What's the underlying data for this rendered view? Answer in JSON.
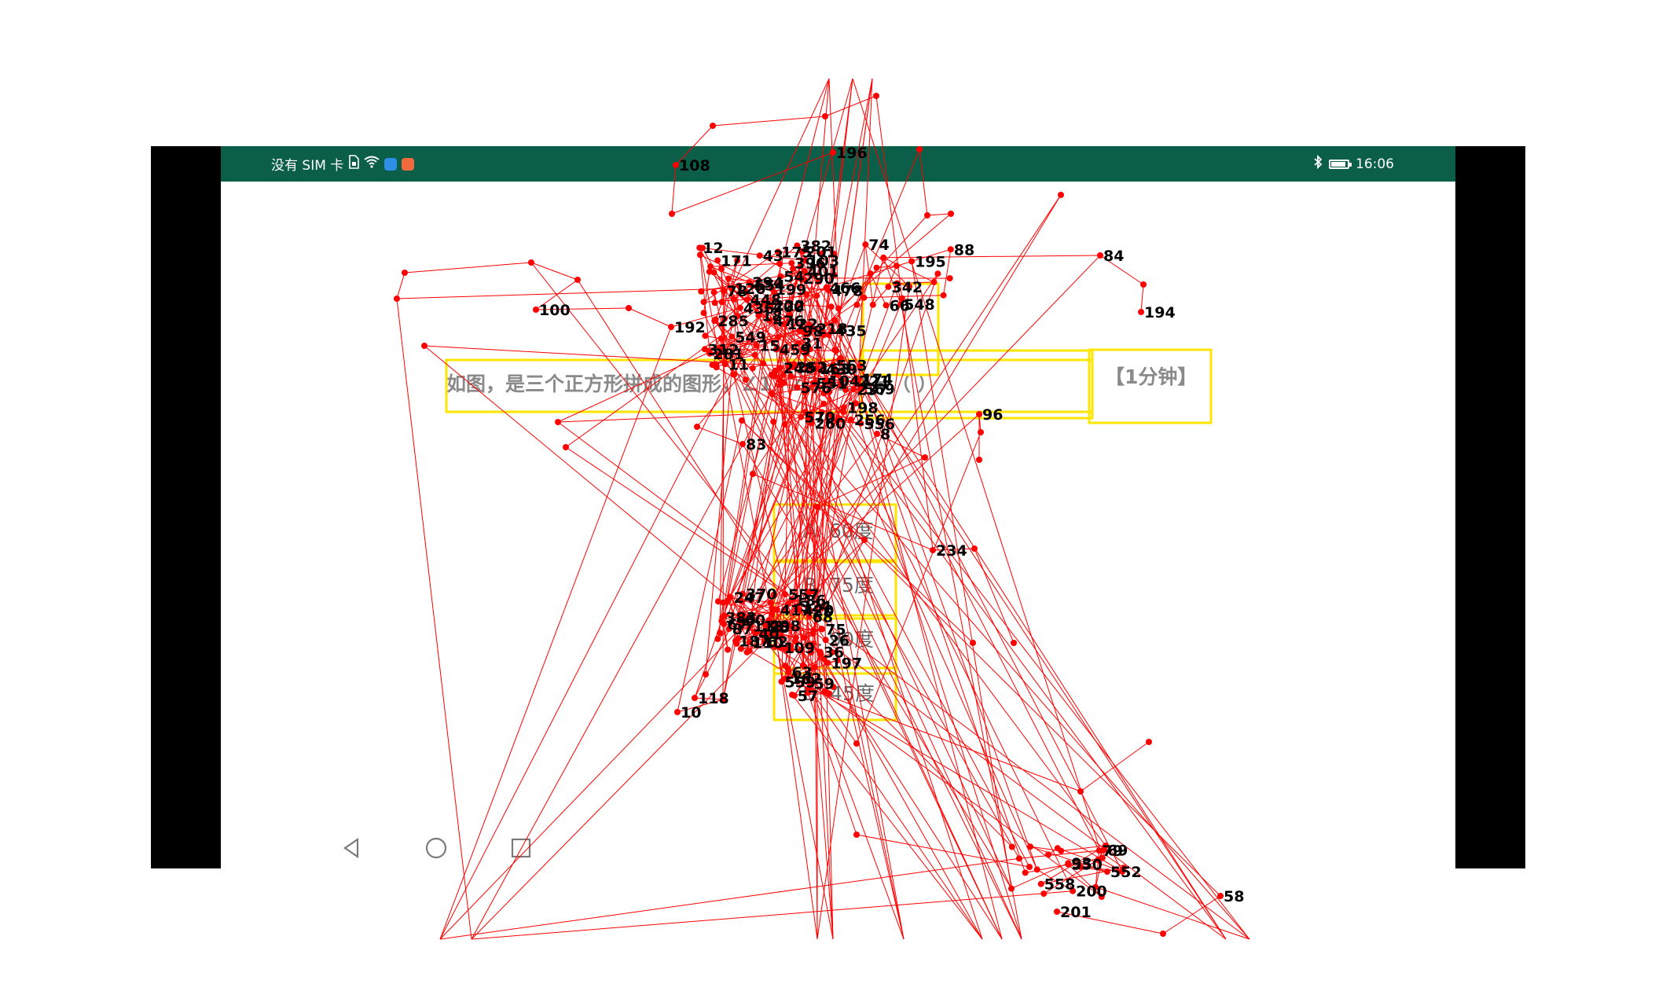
{
  "status_bar": {
    "carrier_text": "没有 SIM 卡",
    "left_icons": [
      "sim-card-icon",
      "wifi-icon",
      "app-badge-blue-icon",
      "app-badge-orange-icon"
    ],
    "right_icons": [
      "bluetooth-icon",
      "battery-icon"
    ],
    "time": "16:06",
    "background_color": "#0b5e48"
  },
  "question": {
    "text": "如图，是三个正方形拼成的图形，∠1+∠2+∠3 =（ ）",
    "time_limit": "【1分钟】"
  },
  "options": [
    {
      "label": "A. 60度"
    },
    {
      "label": "B. 75度"
    },
    {
      "label": "C. 90度"
    },
    {
      "label": "D. 45度"
    }
  ],
  "nav_bar": {
    "buttons": [
      "back-icon",
      "home-icon",
      "recent-apps-icon"
    ]
  },
  "overlay": {
    "line_color": "#ff0000",
    "box_color": "#ffe600",
    "labels": [
      "290",
      "218",
      "104",
      "103",
      "435",
      "171",
      "120",
      "199",
      "466",
      "222",
      "248",
      "549",
      "459",
      "78",
      "285",
      "98",
      "570",
      "569",
      "174",
      "198",
      "551",
      "556",
      "553",
      "557",
      "95",
      "60",
      "62",
      "87",
      "68",
      "75",
      "67",
      "113",
      "110",
      "63",
      "57",
      "109",
      "162",
      "59",
      "69",
      "79",
      "93",
      "88",
      "74",
      "66",
      "108",
      "84",
      "100",
      "83",
      "58",
      "96",
      "118",
      "122",
      "476",
      "43",
      "15",
      "18",
      "294",
      "312",
      "281",
      "436",
      "12",
      "430",
      "201",
      "31",
      "54",
      "554",
      "175",
      "221",
      "252",
      "260",
      "237",
      "256",
      "163",
      "576",
      "417",
      "370",
      "324",
      "298",
      "420",
      "186",
      "187",
      "383",
      "247",
      "40",
      "36",
      "26",
      "559",
      "197",
      "550",
      "552",
      "558",
      "200",
      "548",
      "342",
      "195",
      "196",
      "194",
      "192",
      "234",
      "201",
      "8",
      "10",
      "478",
      "11",
      "401",
      "448",
      "400",
      "396",
      "382"
    ]
  }
}
